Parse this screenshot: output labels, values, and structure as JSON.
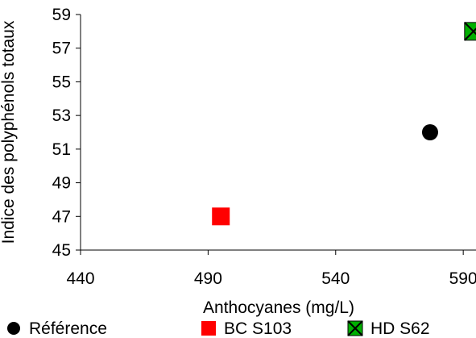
{
  "chart_data": {
    "type": "scatter",
    "title": "",
    "xlabel": "Anthocyanes (mg/L)",
    "ylabel": "Indice des polyphénols totaux",
    "xlim": [
      440,
      595
    ],
    "ylim": [
      45,
      59
    ],
    "x_ticks": [
      440,
      490,
      540,
      590
    ],
    "y_ticks": [
      45,
      47,
      49,
      51,
      53,
      55,
      57,
      59
    ],
    "grid": false,
    "legend_position": "bottom",
    "series": [
      {
        "name": "Référence",
        "marker": "circle",
        "color": "#000000",
        "points": [
          {
            "x": 577,
            "y": 52
          }
        ]
      },
      {
        "name": "BC S103",
        "marker": "square",
        "color": "#ff0000",
        "points": [
          {
            "x": 495,
            "y": 47
          }
        ]
      },
      {
        "name": "HD S62",
        "marker": "x-square",
        "color": "#00b000",
        "points": [
          {
            "x": 594,
            "y": 58
          }
        ]
      }
    ]
  }
}
